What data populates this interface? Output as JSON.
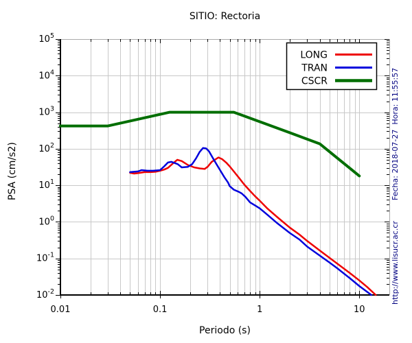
{
  "annotations": {
    "datetime": "Fecha: 2018-07-27  Hora: 11:55:57",
    "url": "http://www.lisucr.ac.cr"
  },
  "colors": {
    "long": "#ee0000",
    "tran": "#0000dd",
    "cscr": "#006e00",
    "grid": "#c8c8c8",
    "border": "#aaaaaa",
    "axis": "#000000",
    "annotation_text": "#000080",
    "background": "#ffffff"
  },
  "chart_data": {
    "type": "line",
    "title": "SITIO: Rectoria",
    "xlabel": "Periodo (s)",
    "ylabel": "PSA (cm/s2)",
    "x_scale": "log",
    "y_scale": "log",
    "xlim": [
      0.01,
      20
    ],
    "ylim": [
      0.01,
      100000
    ],
    "grid": true,
    "x_ticks": [
      {
        "value": 0.01,
        "label": "0.01"
      },
      {
        "value": 0.1,
        "label": "0.1"
      },
      {
        "value": 1,
        "label": "1"
      },
      {
        "value": 10,
        "label": "10"
      }
    ],
    "y_ticks": [
      {
        "mantissa": "10",
        "exponent": "5"
      },
      {
        "mantissa": "10",
        "exponent": "4"
      },
      {
        "mantissa": "10",
        "exponent": "3"
      },
      {
        "mantissa": "10",
        "exponent": "2"
      },
      {
        "mantissa": "10",
        "exponent": "1"
      },
      {
        "mantissa": "10",
        "exponent": "0"
      },
      {
        "mantissa": "10",
        "exponent": "-1"
      },
      {
        "mantissa": "10",
        "exponent": "-2"
      }
    ],
    "legend": {
      "position": "top-right",
      "entries": [
        {
          "label": "LONG",
          "color": "#ee0000",
          "swatch_width": 3
        },
        {
          "label": "TRAN",
          "color": "#0000dd",
          "swatch_width": 3
        },
        {
          "label": "CSCR",
          "color": "#006e00",
          "swatch_width": 4.5
        }
      ]
    },
    "series": [
      {
        "name": "LONG",
        "color": "#ee0000",
        "width": 2.5,
        "points": [
          [
            0.05,
            22
          ],
          [
            0.055,
            21
          ],
          [
            0.06,
            21.5
          ],
          [
            0.07,
            23
          ],
          [
            0.08,
            23
          ],
          [
            0.09,
            23.5
          ],
          [
            0.1,
            25
          ],
          [
            0.11,
            27
          ],
          [
            0.12,
            30
          ],
          [
            0.135,
            40
          ],
          [
            0.149,
            50
          ],
          [
            0.165,
            46
          ],
          [
            0.19,
            36
          ],
          [
            0.22,
            31
          ],
          [
            0.25,
            29
          ],
          [
            0.28,
            28
          ],
          [
            0.3,
            32
          ],
          [
            0.33,
            44
          ],
          [
            0.385,
            58
          ],
          [
            0.42,
            52
          ],
          [
            0.46,
            42
          ],
          [
            0.5,
            33
          ],
          [
            0.55,
            24
          ],
          [
            0.62,
            16
          ],
          [
            0.7,
            10.5
          ],
          [
            0.8,
            7.0
          ],
          [
            0.9,
            5.0
          ],
          [
            1.0,
            3.8
          ],
          [
            1.2,
            2.3
          ],
          [
            1.5,
            1.35
          ],
          [
            2.0,
            0.7
          ],
          [
            2.5,
            0.45
          ],
          [
            3.0,
            0.3
          ],
          [
            4.0,
            0.165
          ],
          [
            5.0,
            0.105
          ],
          [
            6.0,
            0.072
          ],
          [
            8.0,
            0.04
          ],
          [
            10,
            0.025
          ],
          [
            12,
            0.0165
          ],
          [
            14.6,
            0.01
          ]
        ]
      },
      {
        "name": "TRAN",
        "color": "#0000dd",
        "width": 2.5,
        "points": [
          [
            0.05,
            23
          ],
          [
            0.06,
            24
          ],
          [
            0.065,
            26
          ],
          [
            0.075,
            25
          ],
          [
            0.085,
            25
          ],
          [
            0.1,
            26
          ],
          [
            0.11,
            33
          ],
          [
            0.12,
            42
          ],
          [
            0.13,
            44
          ],
          [
            0.15,
            38
          ],
          [
            0.165,
            31
          ],
          [
            0.19,
            32
          ],
          [
            0.21,
            38
          ],
          [
            0.23,
            55
          ],
          [
            0.25,
            82
          ],
          [
            0.27,
            105
          ],
          [
            0.29,
            102
          ],
          [
            0.31,
            85
          ],
          [
            0.34,
            55
          ],
          [
            0.37,
            37
          ],
          [
            0.4,
            26
          ],
          [
            0.44,
            17
          ],
          [
            0.48,
            12
          ],
          [
            0.5,
            9.5
          ],
          [
            0.55,
            7.6
          ],
          [
            0.62,
            6.6
          ],
          [
            0.66,
            6.0
          ],
          [
            0.72,
            4.8
          ],
          [
            0.8,
            3.4
          ],
          [
            0.9,
            2.8
          ],
          [
            1.0,
            2.35
          ],
          [
            1.2,
            1.55
          ],
          [
            1.5,
            0.92
          ],
          [
            2.0,
            0.5
          ],
          [
            2.5,
            0.33
          ],
          [
            3.0,
            0.21
          ],
          [
            4.0,
            0.12
          ],
          [
            5.0,
            0.078
          ],
          [
            6.0,
            0.054
          ],
          [
            8.0,
            0.029
          ],
          [
            10,
            0.0175
          ],
          [
            13.2,
            0.01
          ]
        ]
      },
      {
        "name": "CSCR",
        "color": "#006e00",
        "width": 4,
        "points": [
          [
            0.01,
            420
          ],
          [
            0.03,
            420
          ],
          [
            0.125,
            1000
          ],
          [
            0.55,
            1000
          ],
          [
            0.7,
            786
          ],
          [
            1.0,
            550
          ],
          [
            1.5,
            367
          ],
          [
            2.0,
            275
          ],
          [
            3.0,
            183
          ],
          [
            4.0,
            137
          ],
          [
            5.0,
            84
          ],
          [
            6.0,
            56
          ],
          [
            8.0,
            29.5
          ],
          [
            10,
            18
          ]
        ]
      }
    ]
  }
}
